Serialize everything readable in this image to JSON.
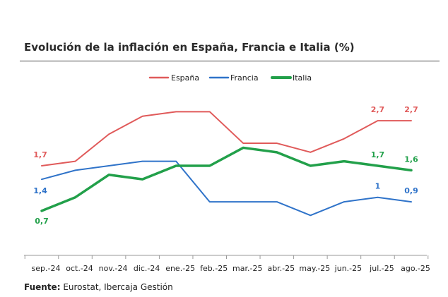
{
  "chart_data": {
    "type": "line",
    "title": "Evolución de la inflación en España, Francia e Italia (%)",
    "categories": [
      "sep.-24",
      "oct.-24",
      "nov.-24",
      "dic.-24",
      "ene.-25",
      "feb.-25",
      "mar.-25",
      "abr.-25",
      "may.-25",
      "jun.-25",
      "jul.-25",
      "ago.-25"
    ],
    "series": [
      {
        "name": "España",
        "color": "#e05a5a",
        "values": [
          1.7,
          1.8,
          2.4,
          2.8,
          2.9,
          2.9,
          2.2,
          2.2,
          2.0,
          2.3,
          2.7,
          2.7
        ]
      },
      {
        "name": "Francia",
        "color": "#2f73c9",
        "values": [
          1.4,
          1.6,
          1.7,
          1.8,
          1.8,
          0.9,
          0.9,
          0.9,
          0.6,
          0.9,
          1.0,
          0.9
        ]
      },
      {
        "name": "Italia",
        "color": "#22a04a",
        "values": [
          0.7,
          1.0,
          1.5,
          1.4,
          1.7,
          1.7,
          2.1,
          2.0,
          1.7,
          1.8,
          1.7,
          1.6
        ]
      }
    ],
    "data_labels": [
      {
        "series": 0,
        "index": 0,
        "text": "1,7"
      },
      {
        "series": 0,
        "index": 10,
        "text": "2,7"
      },
      {
        "series": 0,
        "index": 11,
        "text": "2,7"
      },
      {
        "series": 1,
        "index": 0,
        "text": "1,4"
      },
      {
        "series": 1,
        "index": 10,
        "text": "1"
      },
      {
        "series": 1,
        "index": 11,
        "text": "0,9"
      },
      {
        "series": 2,
        "index": 0,
        "text": "0,7"
      },
      {
        "series": 2,
        "index": 10,
        "text": "1,7"
      },
      {
        "series": 2,
        "index": 11,
        "text": "1,6"
      }
    ],
    "ylim": [
      -0.1,
      3.5
    ],
    "grid": false,
    "legend_position": "top-center",
    "xlabel": "",
    "ylabel": ""
  },
  "source": {
    "label": "Fuente:",
    "text": "Eurostat, Ibercaja Gestión"
  }
}
